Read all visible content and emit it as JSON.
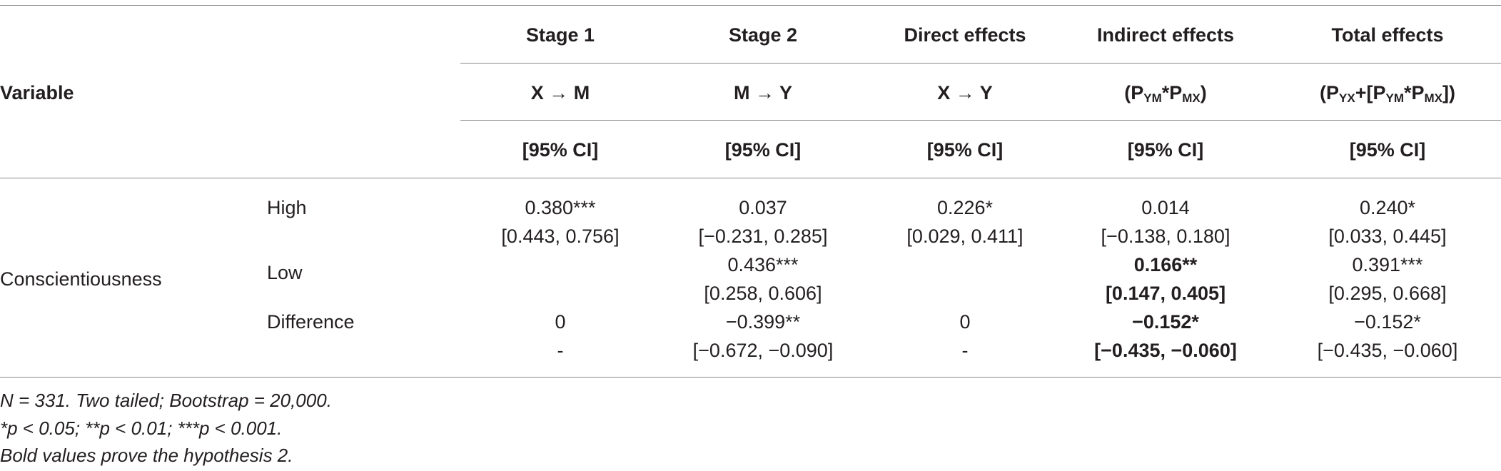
{
  "table": {
    "row_header": "Variable",
    "columns": [
      {
        "title": "Stage 1",
        "path": "X → M",
        "ci": "[95% CI]"
      },
      {
        "title": "Stage 2",
        "path": "M → Y",
        "ci": "[95% CI]"
      },
      {
        "title": "Direct effects",
        "path": "X → Y",
        "ci": "[95% CI]"
      },
      {
        "title": "Indirect effects",
        "path_parts": [
          "(P",
          "YM",
          "*P",
          "MX",
          ")"
        ],
        "ci": "[95% CI]"
      },
      {
        "title": "Total effects",
        "path_parts": [
          "(P",
          "YX",
          "+[P",
          "YM",
          "*P",
          "MX",
          "])"
        ],
        "ci": "[95% CI]"
      }
    ],
    "group": "Conscientiousness",
    "rows": [
      {
        "label": "High",
        "cells": [
          {
            "value": "0.380***",
            "ci": "[0.443, 0.756]"
          },
          {
            "value": "0.037",
            "ci": "[−0.231, 0.285]"
          },
          {
            "value": "0.226*",
            "ci": "[0.029, 0.411]"
          },
          {
            "value": "0.014",
            "ci": "[−0.138, 0.180]"
          },
          {
            "value": "0.240*",
            "ci": "[0.033, 0.445]"
          }
        ]
      },
      {
        "label": "Low",
        "cells": [
          {
            "value": "",
            "ci": ""
          },
          {
            "value": "0.436***",
            "ci": "[0.258, 0.606]"
          },
          {
            "value": "",
            "ci": ""
          },
          {
            "value": "0.166**",
            "ci": "[0.147, 0.405]",
            "bold": true
          },
          {
            "value": "0.391***",
            "ci": "[0.295, 0.668]"
          }
        ]
      },
      {
        "label": "Difference",
        "cells": [
          {
            "value": "0",
            "ci": "-"
          },
          {
            "value": "−0.399**",
            "ci": "[−0.672, −0.090]"
          },
          {
            "value": "0",
            "ci": "-"
          },
          {
            "value": "−0.152*",
            "ci": "[−0.435, −0.060]",
            "bold": true
          },
          {
            "value": "−0.152*",
            "ci": "[−0.435, −0.060]"
          }
        ]
      }
    ]
  },
  "notes": [
    "N = 331. Two tailed; Bootstrap = 20,000.",
    "*p < 0.05; **p < 0.01; ***p < 0.001.",
    "Bold values prove the hypothesis 2."
  ]
}
